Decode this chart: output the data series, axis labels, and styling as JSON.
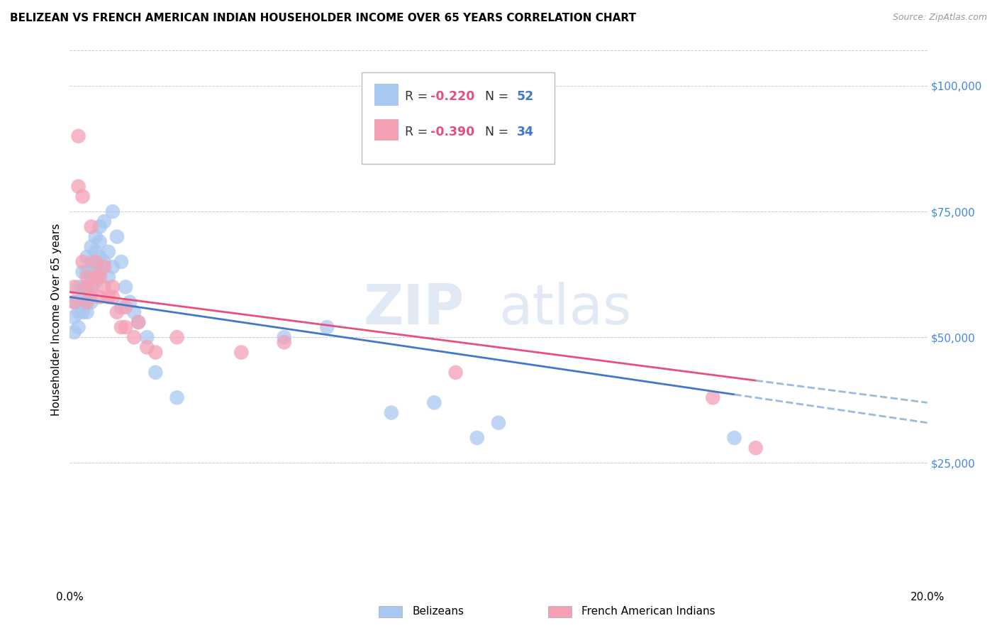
{
  "title": "BELIZEAN VS FRENCH AMERICAN INDIAN HOUSEHOLDER INCOME OVER 65 YEARS CORRELATION CHART",
  "source": "Source: ZipAtlas.com",
  "ylabel": "Householder Income Over 65 years",
  "x_min": 0.0,
  "x_max": 0.2,
  "y_min": 0,
  "y_max": 107000,
  "y_ticks": [
    25000,
    50000,
    75000,
    100000
  ],
  "y_tick_labels": [
    "$25,000",
    "$50,000",
    "$75,000",
    "$100,000"
  ],
  "x_ticks": [
    0.0,
    0.04,
    0.08,
    0.12,
    0.16,
    0.2
  ],
  "legend_blue_r": "-0.220",
  "legend_blue_n": "52",
  "legend_pink_r": "-0.390",
  "legend_pink_n": "34",
  "blue_color": "#A8C8F0",
  "pink_color": "#F4A0B5",
  "blue_line_color": "#4477CC",
  "pink_line_color": "#E8507A",
  "dashed_line_color": "#99BBDD",
  "watermark_zip": "ZIP",
  "watermark_atlas": "atlas",
  "background_color": "#FFFFFF",
  "grid_color": "#CCCCCC",
  "belizean_x": [
    0.001,
    0.001,
    0.001,
    0.002,
    0.002,
    0.002,
    0.002,
    0.003,
    0.003,
    0.003,
    0.003,
    0.004,
    0.004,
    0.004,
    0.004,
    0.004,
    0.005,
    0.005,
    0.005,
    0.005,
    0.005,
    0.006,
    0.006,
    0.006,
    0.006,
    0.007,
    0.007,
    0.007,
    0.007,
    0.008,
    0.008,
    0.009,
    0.009,
    0.01,
    0.01,
    0.011,
    0.012,
    0.012,
    0.013,
    0.014,
    0.015,
    0.016,
    0.018,
    0.02,
    0.025,
    0.05,
    0.06,
    0.075,
    0.085,
    0.095,
    0.1,
    0.155
  ],
  "belizean_y": [
    57000,
    54000,
    51000,
    60000,
    57000,
    55000,
    52000,
    63000,
    60000,
    58000,
    55000,
    66000,
    63000,
    60000,
    57000,
    55000,
    68000,
    65000,
    62000,
    59000,
    57000,
    70000,
    67000,
    64000,
    61000,
    72000,
    69000,
    66000,
    63000,
    73000,
    65000,
    67000,
    62000,
    75000,
    64000,
    70000,
    65000,
    56000,
    60000,
    57000,
    55000,
    53000,
    50000,
    43000,
    38000,
    50000,
    52000,
    35000,
    37000,
    30000,
    33000,
    30000
  ],
  "french_x": [
    0.001,
    0.001,
    0.002,
    0.002,
    0.003,
    0.003,
    0.004,
    0.004,
    0.004,
    0.005,
    0.005,
    0.006,
    0.006,
    0.007,
    0.007,
    0.008,
    0.008,
    0.009,
    0.01,
    0.01,
    0.011,
    0.012,
    0.013,
    0.013,
    0.015,
    0.016,
    0.018,
    0.02,
    0.025,
    0.04,
    0.05,
    0.09,
    0.15,
    0.16
  ],
  "french_y": [
    60000,
    57000,
    90000,
    80000,
    78000,
    65000,
    62000,
    60000,
    57000,
    72000,
    60000,
    65000,
    62000,
    62000,
    58000,
    64000,
    60000,
    58000,
    60000,
    58000,
    55000,
    52000,
    56000,
    52000,
    50000,
    53000,
    48000,
    47000,
    50000,
    47000,
    49000,
    43000,
    38000,
    28000
  ]
}
